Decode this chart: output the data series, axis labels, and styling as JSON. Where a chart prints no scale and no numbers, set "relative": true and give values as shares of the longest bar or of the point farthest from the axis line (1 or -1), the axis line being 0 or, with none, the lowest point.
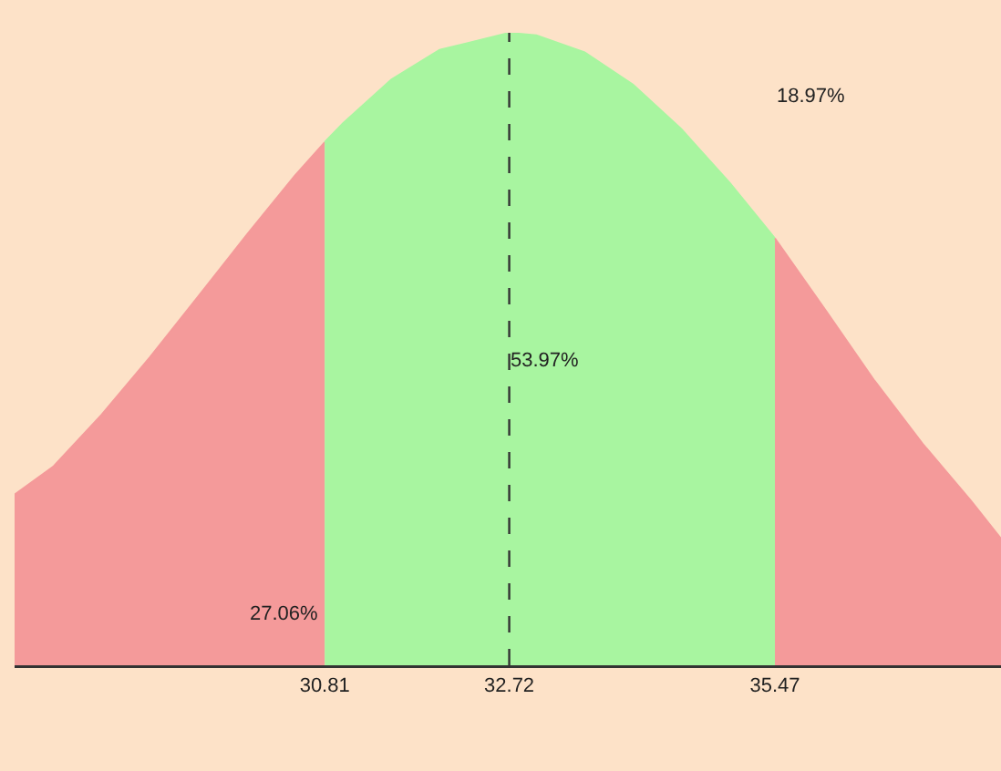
{
  "chart_data": {
    "type": "area",
    "relative": true,
    "xlim": [
      27.6,
      37.81
    ],
    "xticks": [
      30.81,
      32.72,
      35.47
    ],
    "marker": "none",
    "series": [
      {
        "color": "#f49a9a",
        "x": [
          27.6,
          28.0,
          28.5,
          29.0,
          29.5,
          30.0,
          30.5,
          30.81
        ],
        "values": [
          0.27,
          0.314,
          0.396,
          0.487,
          0.583,
          0.68,
          0.774,
          0.827
        ]
      },
      {
        "color": "#a8f5a0",
        "x": [
          30.81,
          31.0,
          31.5,
          32.0,
          32.72,
          33.0,
          33.5,
          34.0,
          34.5,
          35.0,
          35.47
        ],
        "values": [
          0.827,
          0.857,
          0.926,
          0.973,
          1,
          0.996,
          0.969,
          0.918,
          0.848,
          0.763,
          0.675
        ]
      },
      {
        "color": "#f49a9a",
        "x": [
          35.47,
          36.0,
          36.5,
          37.0,
          37.5,
          37.81
        ],
        "values": [
          0.675,
          0.56,
          0.45,
          0.35,
          0.26,
          0.2
        ]
      }
    ],
    "ref_lines": [
      {
        "axis": "x",
        "value": 32.72,
        "color": "#333333",
        "line_style": "dashed"
      }
    ],
    "annotations": [
      "27.06%",
      "53.97%",
      "18.97%"
    ]
  }
}
